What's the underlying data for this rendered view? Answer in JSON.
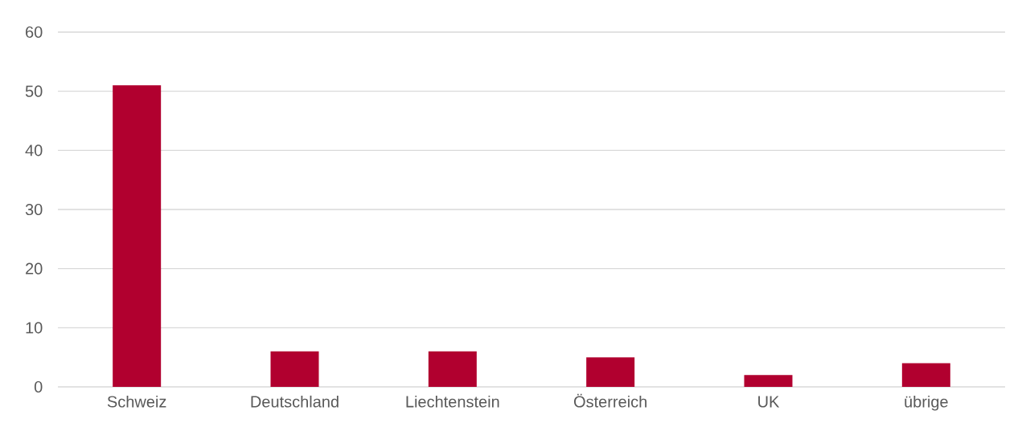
{
  "chart_data": {
    "type": "bar",
    "categories": [
      "Schweiz",
      "Deutschland",
      "Liechtenstein",
      "Österreich",
      "UK",
      "übrige"
    ],
    "values": [
      51,
      6,
      6,
      5,
      2,
      4
    ],
    "color": "#b1002f",
    "ylim": [
      0,
      60
    ],
    "yticks": [
      0,
      10,
      20,
      30,
      40,
      50,
      60
    ],
    "grid": "y"
  }
}
